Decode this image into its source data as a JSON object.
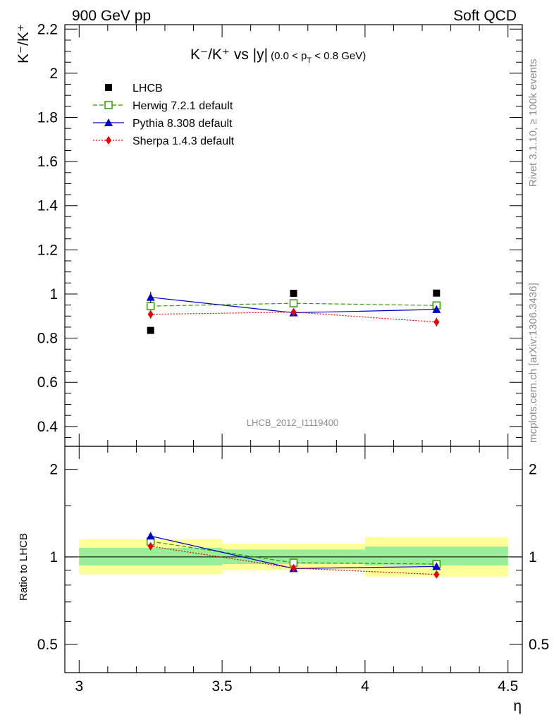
{
  "header": {
    "left": "900 GeV pp",
    "right": "Soft QCD"
  },
  "side_labels": {
    "rivet": "Rivet 3.1.10, ≥ 100k events",
    "mcplots": "mcplots.cern.ch [arXiv:1306.3436]"
  },
  "watermark": "LHCB_2012_I1119400",
  "chart_data": {
    "type": "scatter",
    "title_main": "K⁻/K⁺ vs |y|",
    "title_cut": "(0.0 < p",
    "title_cut_sub": "T",
    "title_cut_end": " < 0.8 GeV)",
    "ylabel_main": "K⁻/K⁺",
    "xlabel": "η",
    "ratio_ylabel": "Ratio to LHCB",
    "x_ticks": [
      "3",
      "3.5",
      "4",
      "4.5"
    ],
    "x_tick_values": [
      3,
      3.5,
      4,
      4.5
    ],
    "main_y_ticks": [
      "0.4",
      "0.6",
      "0.8",
      "1",
      "1.2",
      "1.4",
      "1.6",
      "1.8",
      "2",
      "2.2"
    ],
    "main_y_tick_values": [
      0.4,
      0.6,
      0.8,
      1.0,
      1.2,
      1.4,
      1.6,
      1.8,
      2.0,
      2.2
    ],
    "ratio_y_ticks": [
      "0.5",
      "1",
      "2"
    ],
    "ratio_y_tick_values": [
      0.5,
      1,
      2
    ],
    "xlim": [
      2.95,
      4.55
    ],
    "main_ylim": [
      0.31,
      2.22
    ],
    "ratio_ylim": [
      0.4,
      2.4
    ],
    "ratio_log": true,
    "bins": [
      [
        3.0,
        3.5
      ],
      [
        3.5,
        4.0
      ],
      [
        4.0,
        4.5
      ]
    ],
    "data_x": [
      3.25,
      3.75,
      4.25
    ],
    "data": {
      "name": "LHCB",
      "values": [
        0.835,
        1.003,
        1.004
      ]
    },
    "band_inner": [
      [
        0.935,
        1.075
      ],
      [
        0.945,
        1.06
      ],
      [
        0.935,
        1.085
      ]
    ],
    "band_outer": [
      [
        0.87,
        1.15
      ],
      [
        0.9,
        1.11
      ],
      [
        0.855,
        1.17
      ]
    ],
    "series": [
      {
        "name": "Herwig 7.2.1 default",
        "color": "#339900",
        "dash": "6,3",
        "marker": "open-square",
        "values": [
          0.945,
          0.958,
          0.948
        ],
        "errors": [
          0.01,
          0.01,
          0.01
        ],
        "ratio": [
          1.13,
          0.955,
          0.945
        ],
        "ratio_errors": [
          0.012,
          0.01,
          0.01
        ]
      },
      {
        "name": "Pythia 8.308 default",
        "color": "#0000cc",
        "dash": "",
        "marker": "triangle",
        "values": [
          0.985,
          0.915,
          0.93
        ],
        "errors": [
          0.025,
          0.012,
          0.015
        ],
        "ratio": [
          1.18,
          0.912,
          0.927
        ],
        "ratio_errors": [
          0.03,
          0.012,
          0.015
        ]
      },
      {
        "name": "Sherpa 1.4.3 default",
        "color": "#ee0000",
        "dash": "2,2",
        "marker": "diamond",
        "values": [
          0.908,
          0.918,
          0.873
        ],
        "errors": [
          0.02,
          0.015,
          0.02
        ],
        "ratio": [
          1.088,
          0.915,
          0.87
        ],
        "ratio_errors": [
          0.02,
          0.015,
          0.02
        ]
      }
    ],
    "legend_position": "top-left"
  }
}
